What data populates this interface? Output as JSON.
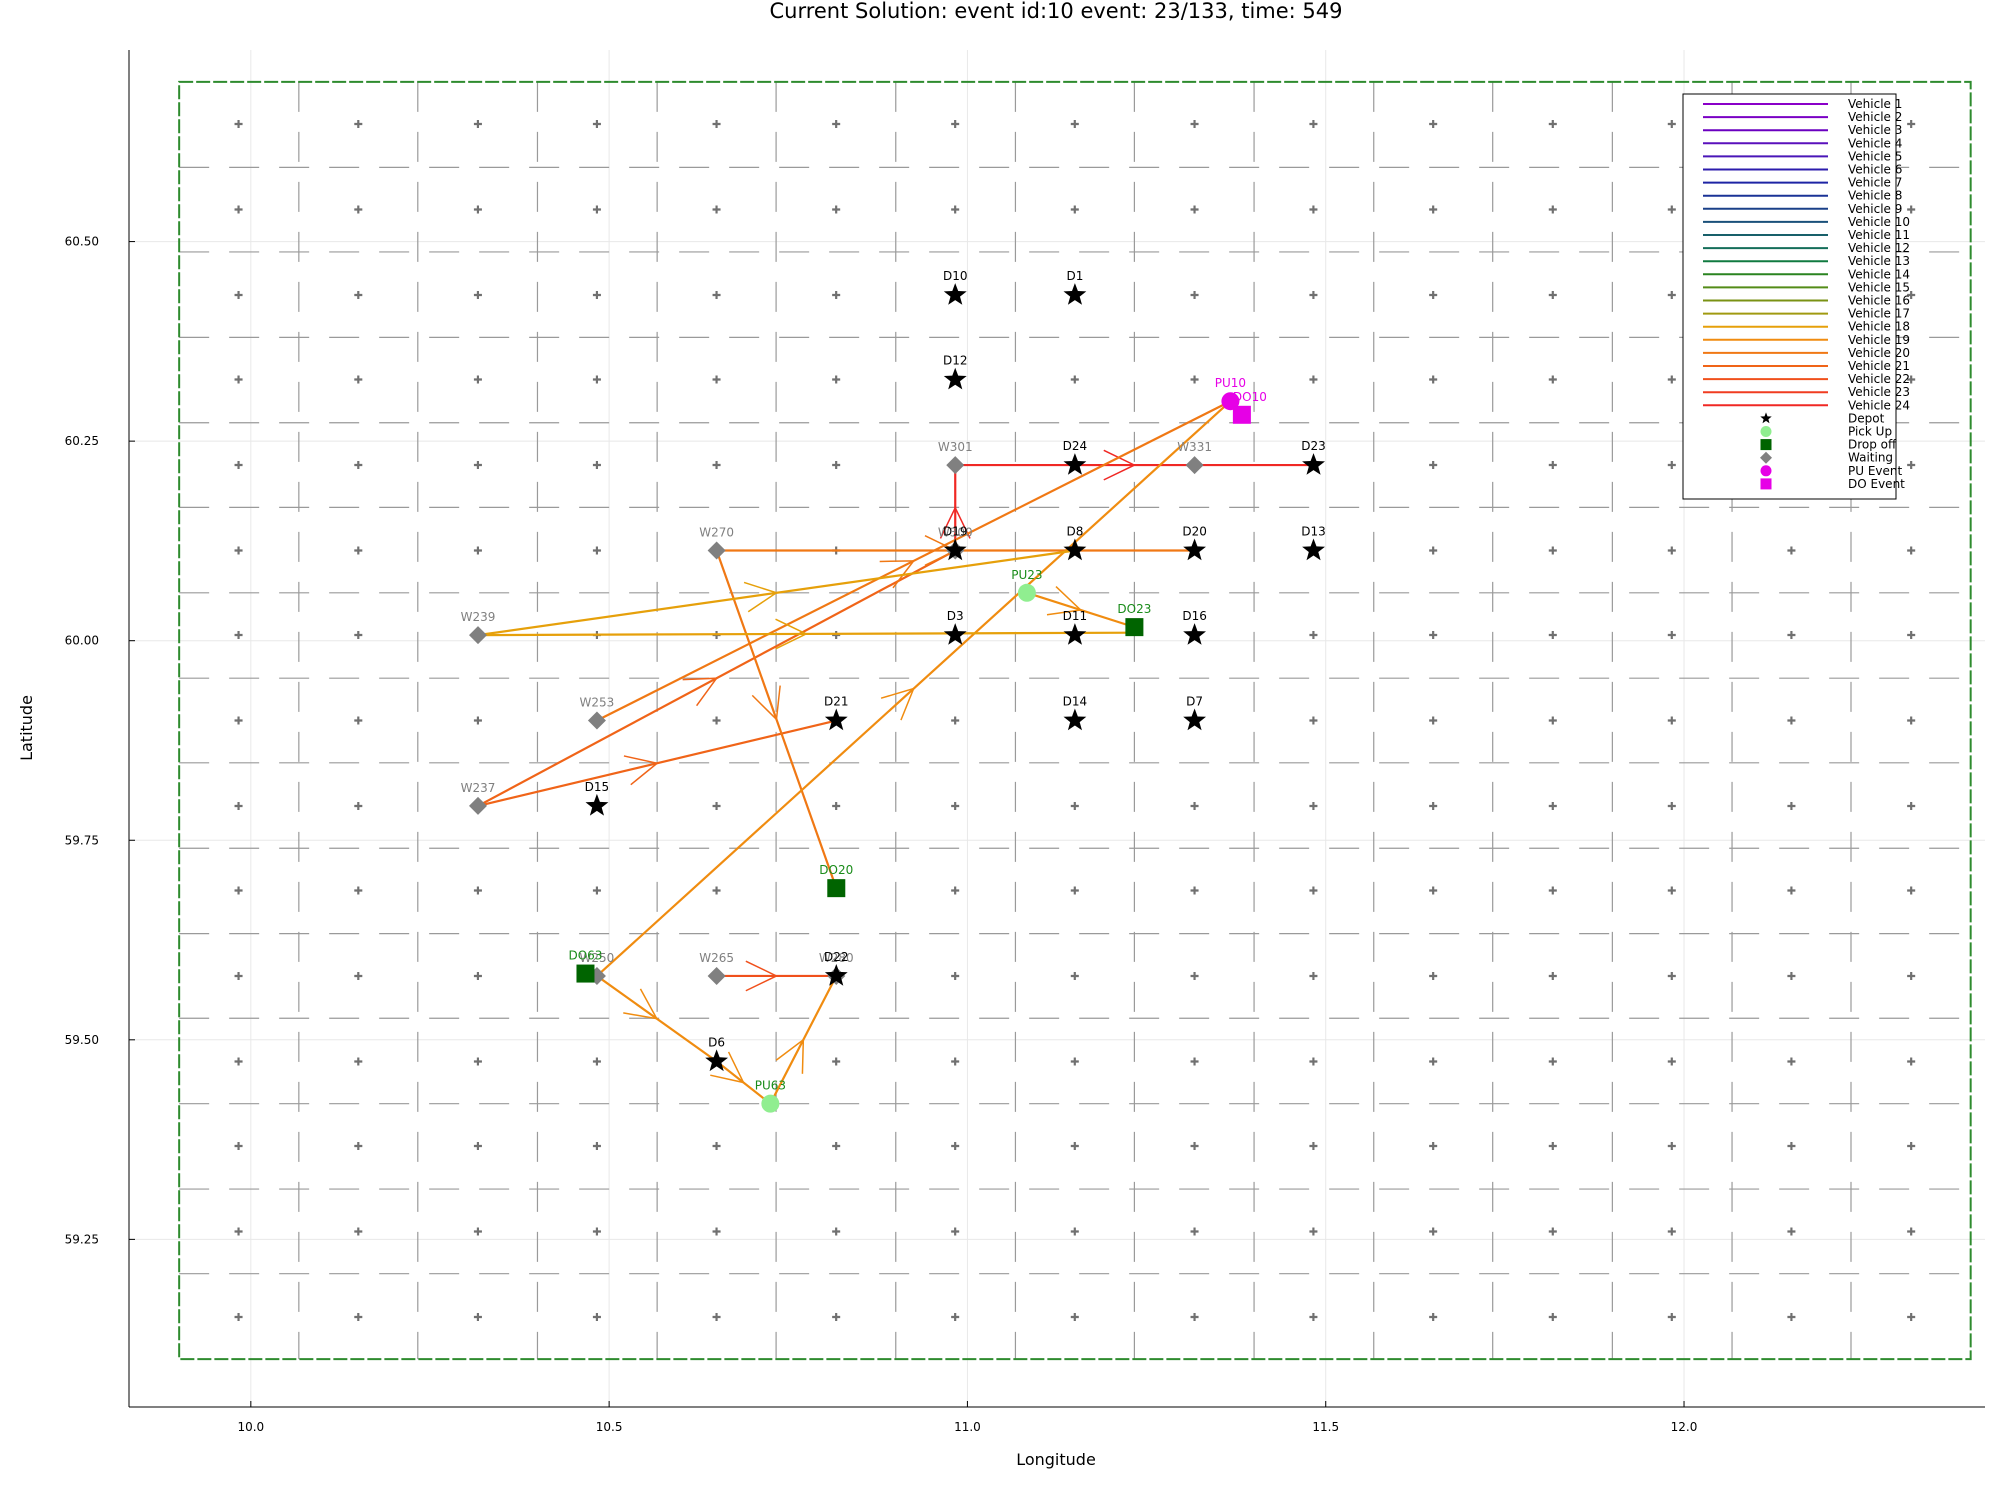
{
  "chart_data": {
    "type": "scatter",
    "title": "Current Solution: event id:10 event: 23/133, time: 549",
    "xlabel": "Longitude",
    "ylabel": "Latitude",
    "xlim": [
      9.83,
      12.42
    ],
    "ylim": [
      59.04,
      60.74
    ],
    "xticks": [
      {
        "value": 10.0,
        "label": "10.0"
      },
      {
        "value": 10.5,
        "label": "10.5"
      },
      {
        "value": 11.0,
        "label": "11.0"
      },
      {
        "value": 11.5,
        "label": "11.5"
      },
      {
        "value": 12.0,
        "label": "12.0"
      }
    ],
    "yticks": [
      {
        "value": 59.25,
        "label": "59.25"
      },
      {
        "value": 59.5,
        "label": "59.50"
      },
      {
        "value": 59.75,
        "label": "59.75"
      },
      {
        "value": 60.0,
        "label": "60.00"
      },
      {
        "value": 60.25,
        "label": "60.25"
      },
      {
        "value": 60.5,
        "label": "60.50"
      }
    ],
    "grid": true,
    "legend_position": "top-right",
    "region_box": {
      "x": [
        9.9,
        12.4
      ],
      "y": [
        59.1,
        60.7
      ],
      "color": "#2e8b2e"
    },
    "cell_lines": {
      "x": [
        10.067,
        10.233,
        10.4,
        10.567,
        10.733,
        10.9,
        11.067,
        11.233,
        11.4,
        11.567,
        11.733,
        11.9,
        12.067,
        12.233
      ],
      "y": [
        59.207,
        59.313,
        59.42,
        59.527,
        59.633,
        59.74,
        59.847,
        59.953,
        60.06,
        60.167,
        60.273,
        60.38,
        60.487,
        60.593
      ]
    },
    "cell_centers": {
      "x": [
        9.983,
        10.15,
        10.317,
        10.483,
        10.65,
        10.817,
        10.983,
        11.15,
        11.317,
        11.483,
        11.65,
        11.817,
        11.983,
        12.15,
        12.317
      ],
      "y": [
        59.153,
        59.26,
        59.367,
        59.473,
        59.58,
        59.687,
        59.793,
        59.9,
        60.007,
        60.113,
        60.22,
        60.327,
        60.433,
        60.54,
        60.647
      ]
    },
    "vehicles": [
      {
        "name": "Vehicle 1",
        "color": "#8a00c8"
      },
      {
        "name": "Vehicle 2",
        "color": "#7a00c4"
      },
      {
        "name": "Vehicle 3",
        "color": "#6a00c0"
      },
      {
        "name": "Vehicle 4",
        "color": "#5a10bc"
      },
      {
        "name": "Vehicle 5",
        "color": "#4a16b8"
      },
      {
        "name": "Vehicle 6",
        "color": "#2c1cac"
      },
      {
        "name": "Vehicle 7",
        "color": "#1e24a4"
      },
      {
        "name": "Vehicle 8",
        "color": "#1a3296"
      },
      {
        "name": "Vehicle 9",
        "color": "#1a4088"
      },
      {
        "name": "Vehicle 10",
        "color": "#1a507a"
      },
      {
        "name": "Vehicle 11",
        "color": "#18606a"
      },
      {
        "name": "Vehicle 12",
        "color": "#146e5a"
      },
      {
        "name": "Vehicle 13",
        "color": "#107a40"
      },
      {
        "name": "Vehicle 14",
        "color": "#2a8420"
      },
      {
        "name": "Vehicle 15",
        "color": "#548c18"
      },
      {
        "name": "Vehicle 16",
        "color": "#7a9214"
      },
      {
        "name": "Vehicle 17",
        "color": "#a09a10"
      },
      {
        "name": "Vehicle 18",
        "color": "#e6a00a"
      },
      {
        "name": "Vehicle 19",
        "color": "#f08c10"
      },
      {
        "name": "Vehicle 20",
        "color": "#f07814"
      },
      {
        "name": "Vehicle 21",
        "color": "#f06418"
      },
      {
        "name": "Vehicle 22",
        "color": "#f0501c"
      },
      {
        "name": "Vehicle 23",
        "color": "#f03c20"
      },
      {
        "name": "Vehicle 24",
        "color": "#f02824"
      }
    ],
    "legend_markers": [
      {
        "name": "Depot",
        "shape": "star",
        "color": "#000000"
      },
      {
        "name": "Pick Up",
        "shape": "circle",
        "color": "#90ee90"
      },
      {
        "name": "Drop off",
        "shape": "square",
        "color": "#006400"
      },
      {
        "name": "Waiting",
        "shape": "diamond",
        "color": "#808080"
      },
      {
        "name": "PU Event",
        "shape": "circle",
        "color": "#e600e6"
      },
      {
        "name": "DO Event",
        "shape": "square",
        "color": "#e600e6"
      }
    ],
    "depots": [
      {
        "label": "D10",
        "x": 10.983,
        "y": 60.433
      },
      {
        "label": "D1",
        "x": 11.15,
        "y": 60.433
      },
      {
        "label": "D12",
        "x": 10.983,
        "y": 60.327
      },
      {
        "label": "D24",
        "x": 11.15,
        "y": 60.22
      },
      {
        "label": "D23",
        "x": 11.483,
        "y": 60.22
      },
      {
        "label": "D19",
        "x": 10.983,
        "y": 60.113
      },
      {
        "label": "D8",
        "x": 11.15,
        "y": 60.113
      },
      {
        "label": "D20",
        "x": 11.317,
        "y": 60.113
      },
      {
        "label": "D13",
        "x": 11.483,
        "y": 60.113
      },
      {
        "label": "D3",
        "x": 10.983,
        "y": 60.007
      },
      {
        "label": "D11",
        "x": 11.15,
        "y": 60.007
      },
      {
        "label": "D16",
        "x": 11.317,
        "y": 60.007
      },
      {
        "label": "D21",
        "x": 10.817,
        "y": 59.9
      },
      {
        "label": "D14",
        "x": 11.15,
        "y": 59.9
      },
      {
        "label": "D7",
        "x": 11.317,
        "y": 59.9
      },
      {
        "label": "D15",
        "x": 10.483,
        "y": 59.793
      },
      {
        "label": "D22",
        "x": 10.817,
        "y": 59.58
      },
      {
        "label": "D6",
        "x": 10.65,
        "y": 59.473
      }
    ],
    "waiting": [
      {
        "label": "W301",
        "x": 10.983,
        "y": 60.22
      },
      {
        "label": "W331",
        "x": 11.317,
        "y": 60.22
      },
      {
        "label": "W270",
        "x": 10.65,
        "y": 60.113
      },
      {
        "label": "W300",
        "x": 10.983,
        "y": 60.113
      },
      {
        "label": "W239",
        "x": 10.317,
        "y": 60.007
      },
      {
        "label": "W253",
        "x": 10.483,
        "y": 59.9
      },
      {
        "label": "W237",
        "x": 10.317,
        "y": 59.793
      },
      {
        "label": "W265",
        "x": 10.65,
        "y": 59.58
      },
      {
        "label": "W250",
        "x": 10.483,
        "y": 59.58
      },
      {
        "label": "W280",
        "x": 10.817,
        "y": 59.58
      }
    ],
    "pickups": [
      {
        "label": "PU23",
        "x": 11.083,
        "y": 60.06
      },
      {
        "label": "PU63",
        "x": 10.725,
        "y": 59.42
      }
    ],
    "dropoffs": [
      {
        "label": "DO23",
        "x": 11.233,
        "y": 60.017
      },
      {
        "label": "DO20",
        "x": 10.817,
        "y": 59.69
      },
      {
        "label": "DO63",
        "x": 10.467,
        "y": 59.583
      }
    ],
    "pu_events": [
      {
        "label": "PU10",
        "x": 11.367,
        "y": 60.3
      }
    ],
    "do_events": [
      {
        "label": "DO10",
        "x": 11.383,
        "y": 60.283
      }
    ],
    "routes": [
      {
        "vehicle": "Vehicle 24",
        "color": "#f02824",
        "points": [
          [
            10.983,
            60.22
          ],
          [
            11.483,
            60.22
          ]
        ]
      },
      {
        "vehicle": "Vehicle 24",
        "color": "#f02824",
        "points": [
          [
            10.983,
            60.113
          ],
          [
            10.983,
            60.22
          ]
        ]
      },
      {
        "vehicle": "Vehicle 22",
        "color": "#f0501c",
        "points": [
          [
            10.65,
            59.58
          ],
          [
            10.817,
            59.58
          ]
        ]
      },
      {
        "vehicle": "Vehicle 21",
        "color": "#f06418",
        "points": [
          [
            10.317,
            59.793
          ],
          [
            10.817,
            59.9
          ]
        ]
      },
      {
        "vehicle": "Vehicle 21",
        "color": "#f06418",
        "points": [
          [
            10.317,
            59.793
          ],
          [
            10.983,
            60.113
          ]
        ]
      },
      {
        "vehicle": "Vehicle 20",
        "color": "#f07814",
        "points": [
          [
            10.483,
            59.9
          ],
          [
            11.367,
            60.3
          ]
        ]
      },
      {
        "vehicle": "Vehicle 20",
        "color": "#f07814",
        "points": [
          [
            10.65,
            60.113
          ],
          [
            11.317,
            60.113
          ]
        ]
      },
      {
        "vehicle": "Vehicle 20",
        "color": "#f07814",
        "points": [
          [
            10.65,
            60.113
          ],
          [
            10.817,
            59.69
          ]
        ]
      },
      {
        "vehicle": "Vehicle 19",
        "color": "#f08c10",
        "points": [
          [
            10.483,
            59.58
          ],
          [
            11.367,
            60.3
          ]
        ]
      },
      {
        "vehicle": "Vehicle 19",
        "color": "#f08c10",
        "points": [
          [
            10.483,
            59.58
          ],
          [
            10.65,
            59.473
          ],
          [
            10.725,
            59.42
          ],
          [
            10.817,
            59.58
          ]
        ]
      },
      {
        "vehicle": "Vehicle 19",
        "color": "#f08c10",
        "points": [
          [
            11.083,
            60.06
          ],
          [
            11.233,
            60.017
          ]
        ]
      },
      {
        "vehicle": "Vehicle 18",
        "color": "#e6a00a",
        "points": [
          [
            10.317,
            60.007
          ],
          [
            11.15,
            60.113
          ]
        ]
      },
      {
        "vehicle": "Vehicle 18",
        "color": "#e6a00a",
        "points": [
          [
            10.317,
            60.007
          ],
          [
            11.233,
            60.01
          ]
        ]
      }
    ]
  }
}
